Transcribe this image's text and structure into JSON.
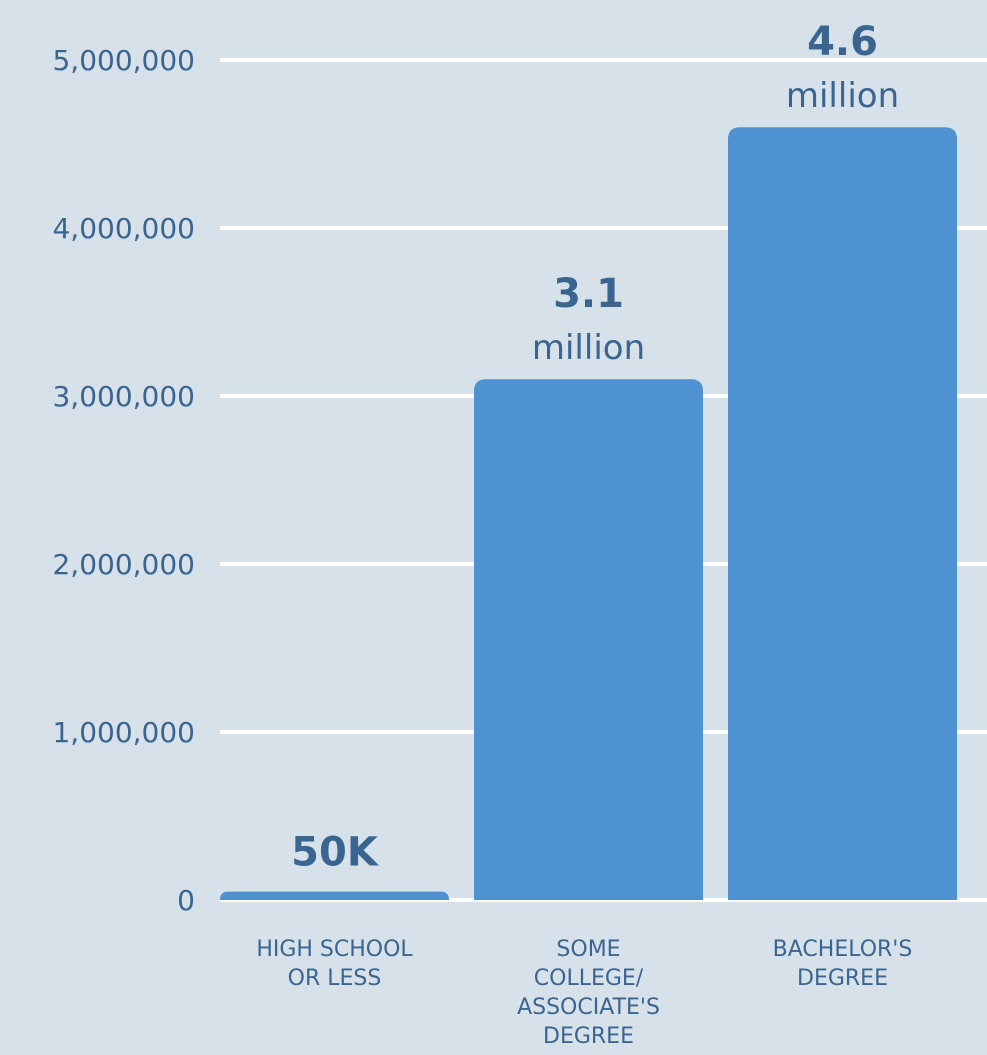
{
  "colors": {
    "background": "#d6e1ea",
    "bar": "#4f92d1",
    "gridline": "#ffffff",
    "tick_text": "#3b6591",
    "label_text": "#3b6591"
  },
  "chart_data": {
    "type": "bar",
    "categories": [
      [
        "HIGH SCHOOL",
        "OR LESS"
      ],
      [
        "SOME",
        "COLLEGE/",
        "ASSOCIATE'S",
        "DEGREE"
      ],
      [
        "BACHELOR'S",
        "DEGREE"
      ]
    ],
    "values": [
      50000,
      3100000,
      4600000
    ],
    "data_labels": [
      {
        "big": "50K",
        "unit": ""
      },
      {
        "big": "3.1",
        "unit": "million"
      },
      {
        "big": "4.6",
        "unit": "million"
      }
    ],
    "ylim": [
      0,
      5000000
    ],
    "yticks": [
      0,
      1000000,
      2000000,
      3000000,
      4000000,
      5000000
    ],
    "ytick_labels": [
      "0",
      "1,000,000",
      "2,000,000",
      "3,000,000",
      "4,000,000",
      "5,000,000"
    ],
    "title": "",
    "xlabel": "",
    "ylabel": "",
    "grid": true,
    "legend": "none"
  }
}
